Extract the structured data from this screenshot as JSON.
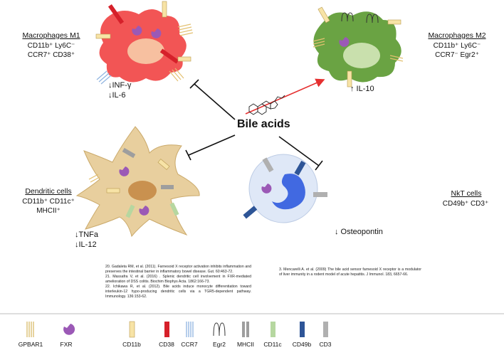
{
  "center": {
    "label": "Bile acids"
  },
  "cells": {
    "m1": {
      "title": "Macrophages M1",
      "markers": [
        "CD11b⁺ Ly6C⁻",
        "CCR7⁺ CD38⁺"
      ],
      "effects": [
        "↓INF-γ",
        "↓IL-6"
      ],
      "color": "#f05050"
    },
    "m2": {
      "title": "Macrophages M2",
      "markers": [
        "CD11b⁺ Ly6C⁻",
        "CCR7⁻ Egr2⁺"
      ],
      "effects": [
        "↑ IL-10"
      ],
      "color": "#6aa343"
    },
    "dc": {
      "title": "Dendritic cells",
      "markers": [
        "CD11b⁺ CD11c⁺",
        "MHCII⁺"
      ],
      "effects": [
        "↓TNFa",
        "↓IL-12"
      ],
      "color": "#e8cf9e"
    },
    "nkt": {
      "title": "NkT cells",
      "markers": [
        "CD49b⁺ CD3⁺"
      ],
      "effects": [
        "↓ Osteopontin"
      ],
      "color": "#dfe8f7"
    }
  },
  "references": {
    "left": [
      "20. Gadaleta RM, et al. (2011). Farnesoid X receptor activation inhibits inflammation and preserves the intestinal barrier in inflammatory bowel disease. Gut. 60:463-72.",
      "21. Massafra V, et al. (2016) . Splenic dendritic cell involvement in FXR-mediated amelioration of DSS colitis. Biochim Biophys Acta. 1862:166-73.",
      "22. Ichikawa R, et al. (2012). Bile acids induce monocyte differentiation toward interleukin-12 hypo-producing dendritic cells via a TGR5-dependent pathway. Immunology. 136:153-62."
    ],
    "right": [
      "3. Mencarelli A. et al. (2009) The bile acid sensor farnesoid X receptor is a modulator of liver immunity in a rodent model of acute hepatitis. J Immunol. 183, 6657-66."
    ]
  },
  "legend": [
    {
      "label": "GPBAR1",
      "icon": "gpbar1-icon",
      "color": "#e8d9a0"
    },
    {
      "label": "FXR",
      "icon": "fxr-icon",
      "color": "#9b59b6"
    },
    {
      "label": "CD11b",
      "icon": "cd11b-icon",
      "color": "#f7e3a6"
    },
    {
      "label": "CD38",
      "icon": "cd38-icon",
      "color": "#d6202a"
    },
    {
      "label": "CCR7",
      "icon": "ccr7-icon",
      "color": "#a9c7ea"
    },
    {
      "label": "Egr2",
      "icon": "egr2-icon",
      "color": "#333333"
    },
    {
      "label": "MHCII",
      "icon": "mhcii-icon",
      "color": "#9e9e9e"
    },
    {
      "label": "CD11c",
      "icon": "cd11c-icon",
      "color": "#b6d7a0"
    },
    {
      "label": "CD49b",
      "icon": "cd49b-icon",
      "color": "#2e5597"
    },
    {
      "label": "CD3",
      "icon": "cd3-icon",
      "color": "#b0b0b0"
    }
  ]
}
